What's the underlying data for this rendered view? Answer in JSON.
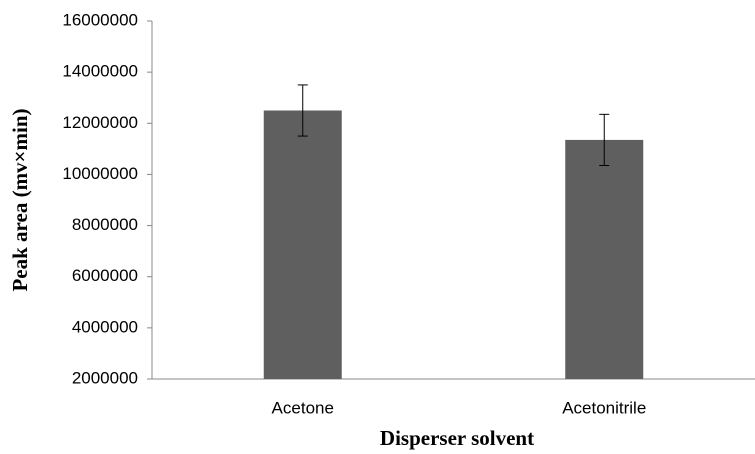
{
  "chart_data": {
    "type": "bar",
    "x_label": "Disperser solvent",
    "y_label": "Peak area (mv×min)",
    "categories": [
      "Acetone",
      "Acetonitrile"
    ],
    "values": [
      12500000,
      11350000
    ],
    "errors": [
      1000000,
      1000000
    ],
    "color": "#5f5f5f",
    "ylim": [
      2000000,
      16000000
    ],
    "yticks": [
      2000000,
      4000000,
      6000000,
      8000000,
      10000000,
      12000000,
      14000000,
      16000000
    ],
    "grid": false
  }
}
